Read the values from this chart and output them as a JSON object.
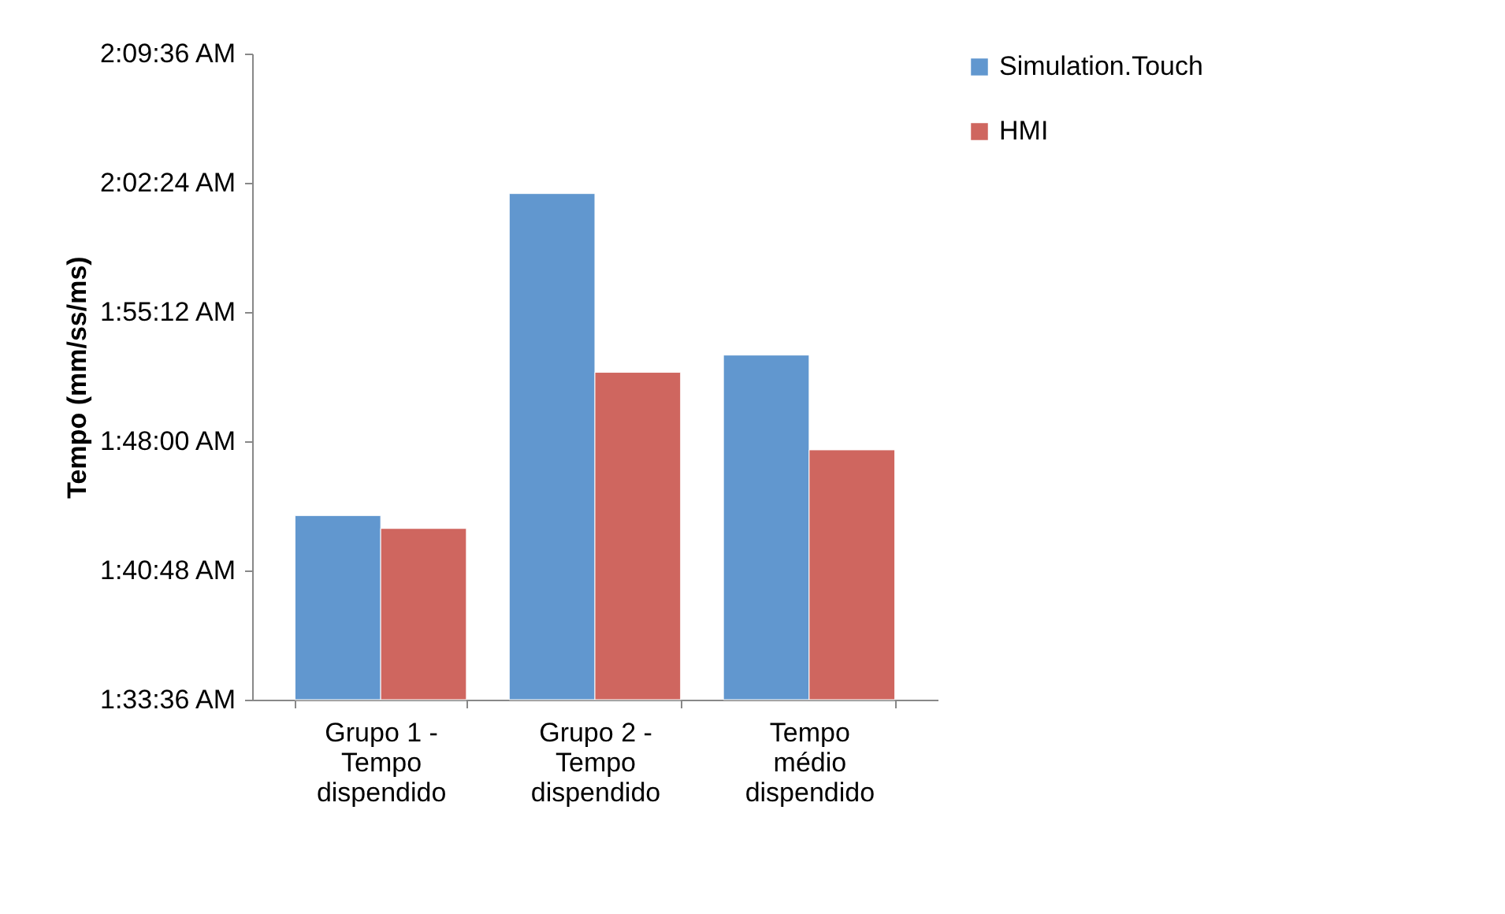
{
  "chart_data": {
    "type": "bar",
    "ylabel": "Tempo (mm/ss/ms)",
    "categories": [
      "Grupo 1 -\nTempo\ndispendido",
      "Grupo 2 -\nTempo\ndispendido",
      "Tempo\nmédio\ndispendido"
    ],
    "series": [
      {
        "name": "Simulation.Touch",
        "color": "#6197cf",
        "values": [
          1.731,
          2.03,
          1.88
        ]
      },
      {
        "name": "HMI",
        "color": "#cf665f",
        "values": [
          1.719,
          1.864,
          1.792
        ]
      }
    ],
    "ylim": [
      1.56,
      2.16
    ],
    "yticks": [
      {
        "value": 1.56,
        "label": "1:33:36 AM"
      },
      {
        "value": 1.68,
        "label": "1:40:48 AM"
      },
      {
        "value": 1.8,
        "label": "1:48:00 AM"
      },
      {
        "value": 1.92,
        "label": "1:55:12 AM"
      },
      {
        "value": 2.04,
        "label": "2:02:24 AM"
      },
      {
        "value": 2.16,
        "label": "2:09:36 AM"
      }
    ],
    "grid": false,
    "legend": "right"
  }
}
